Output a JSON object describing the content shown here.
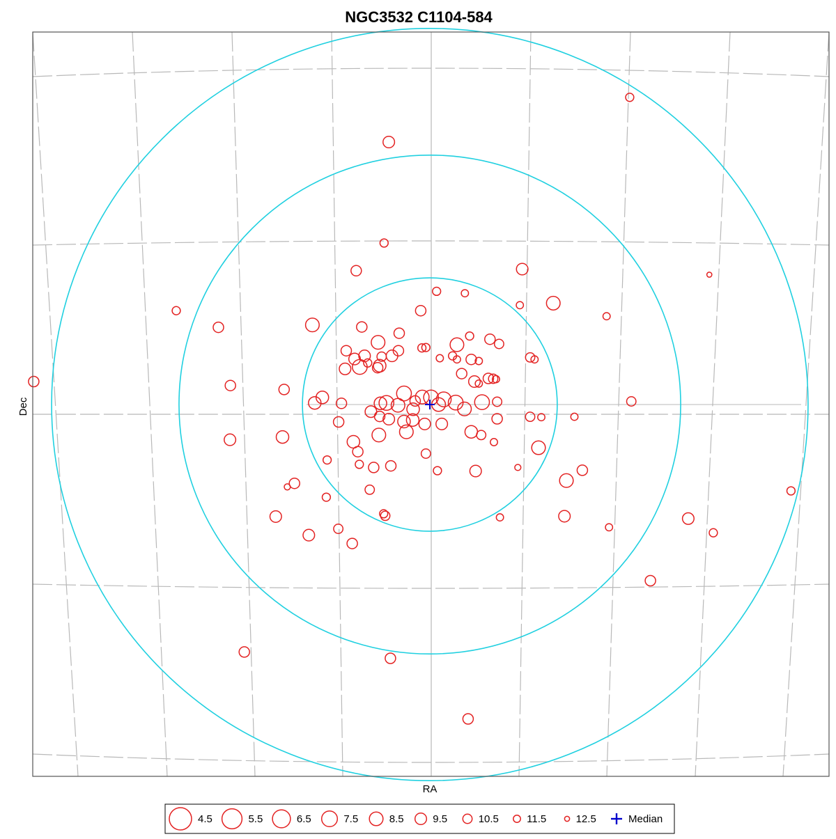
{
  "chart_data": {
    "type": "scatter",
    "title": "NGC3532  C1104-584",
    "xlabel": "RA",
    "ylabel": "Dec",
    "grid": true,
    "legend_position": "bottom",
    "center": [
      0,
      0
    ],
    "xlim": [
      -100,
      100
    ],
    "ylim": [
      -94,
      94
    ],
    "rings": [
      32,
      63,
      95
    ],
    "colors": {
      "star": "#e32222",
      "ring": "#20d0e0",
      "median": "#0000cc",
      "grid": "#b8b8b8",
      "frame": "#555555"
    },
    "legend": [
      {
        "mag": 4.5,
        "label": "4.5"
      },
      {
        "mag": 5.5,
        "label": "5.5"
      },
      {
        "mag": 6.5,
        "label": "6.5"
      },
      {
        "mag": 7.5,
        "label": "7.5"
      },
      {
        "mag": 8.5,
        "label": "8.5"
      },
      {
        "mag": 9.5,
        "label": "9.5"
      },
      {
        "mag": 10.5,
        "label": "10.5"
      },
      {
        "mag": 11.5,
        "label": "11.5"
      },
      {
        "mag": 12.5,
        "label": "12.5"
      }
    ],
    "median_label": "Median",
    "stars": [
      [
        50.2,
        77.6,
        11.0
      ],
      [
        -10.3,
        66.3,
        9.5
      ],
      [
        -11.5,
        40.8,
        11.0
      ],
      [
        -18.5,
        33.8,
        10.0
      ],
      [
        23.2,
        34.2,
        9.5
      ],
      [
        70.2,
        32.8,
        12.5
      ],
      [
        -63.7,
        23.7,
        11.0
      ],
      [
        -53.1,
        19.5,
        10.0
      ],
      [
        -29.5,
        20.1,
        8.5
      ],
      [
        1.7,
        28.6,
        11.0
      ],
      [
        8.8,
        28.1,
        11.5
      ],
      [
        -2.3,
        23.7,
        10.0
      ],
      [
        22.6,
        25.1,
        11.5
      ],
      [
        31.0,
        25.6,
        8.5
      ],
      [
        44.4,
        22.3,
        11.5
      ],
      [
        -17.1,
        19.6,
        10.0
      ],
      [
        -7.7,
        18.0,
        10.0
      ],
      [
        -13.0,
        15.7,
        8.5
      ],
      [
        -7.9,
        13.6,
        10.0
      ],
      [
        -2.0,
        14.3,
        11.0
      ],
      [
        -1.0,
        14.4,
        11.0
      ],
      [
        6.8,
        15.1,
        8.5
      ],
      [
        10.0,
        17.3,
        11.0
      ],
      [
        15.1,
        16.5,
        10.0
      ],
      [
        17.4,
        15.3,
        10.5
      ],
      [
        -21.0,
        13.6,
        10.0
      ],
      [
        -16.4,
        12.3,
        9.5
      ],
      [
        -9.5,
        12.3,
        9.5
      ],
      [
        -12.1,
        12.1,
        10.5
      ],
      [
        -18.9,
        11.5,
        9.5
      ],
      [
        -17.6,
        9.5,
        8.0
      ],
      [
        -12.6,
        9.8,
        9.0
      ],
      [
        2.5,
        11.7,
        11.5
      ],
      [
        5.7,
        12.3,
        11.0
      ],
      [
        6.8,
        11.4,
        11.5
      ],
      [
        10.4,
        11.4,
        10.0
      ],
      [
        12.3,
        11.0,
        11.5
      ],
      [
        -21.3,
        9.0,
        9.5
      ],
      [
        -15.6,
        10.5,
        11.0
      ],
      [
        -13.1,
        9.3,
        10.0
      ],
      [
        25.2,
        11.9,
        10.5
      ],
      [
        26.3,
        11.4,
        11.5
      ],
      [
        8.0,
        7.8,
        10.0
      ],
      [
        11.2,
        5.8,
        9.5
      ],
      [
        12.3,
        5.3,
        11.5
      ],
      [
        14.7,
        6.6,
        10.0
      ],
      [
        15.9,
        6.5,
        10.5
      ],
      [
        16.6,
        6.4,
        11.5
      ],
      [
        -50.1,
        4.8,
        10.0
      ],
      [
        -36.6,
        3.8,
        10.0
      ],
      [
        -27.0,
        1.8,
        9.0
      ],
      [
        -28.9,
        0.4,
        9.0
      ],
      [
        -22.2,
        0.3,
        10.0
      ],
      [
        -12.4,
        0.3,
        9.0
      ],
      [
        -10.9,
        0.4,
        8.0
      ],
      [
        -6.5,
        2.8,
        8.0
      ],
      [
        -1.9,
        1.9,
        8.5
      ],
      [
        0.3,
        1.8,
        8.0
      ],
      [
        2.2,
        0.0,
        8.5
      ],
      [
        -4.2,
        -1.2,
        9.0
      ],
      [
        -8.0,
        -0.2,
        8.5
      ],
      [
        -3.7,
        0.9,
        10.0
      ],
      [
        3.5,
        1.3,
        8.0
      ],
      [
        6.5,
        0.5,
        8.0
      ],
      [
        8.7,
        -1.1,
        8.5
      ],
      [
        -14.8,
        -1.8,
        9.5
      ],
      [
        13.1,
        0.6,
        8.0
      ],
      [
        16.9,
        0.7,
        10.5
      ],
      [
        25.2,
        -3.1,
        10.5
      ],
      [
        28.0,
        -3.2,
        11.5
      ],
      [
        36.3,
        -3.1,
        11.5
      ],
      [
        50.6,
        0.8,
        10.5
      ],
      [
        -22.9,
        -4.4,
        10.0
      ],
      [
        -12.6,
        -3.0,
        10.0
      ],
      [
        -10.3,
        -3.7,
        9.5
      ],
      [
        -6.5,
        -4.3,
        9.0
      ],
      [
        -4.3,
        -3.9,
        9.0
      ],
      [
        -1.3,
        -4.9,
        9.5
      ],
      [
        3.0,
        -4.9,
        9.5
      ],
      [
        16.9,
        -3.6,
        10.0
      ],
      [
        -5.9,
        -6.9,
        8.5
      ],
      [
        -12.8,
        -7.7,
        8.5
      ],
      [
        10.4,
        -6.9,
        9.0
      ],
      [
        12.9,
        -7.7,
        10.5
      ],
      [
        16.1,
        -9.5,
        11.5
      ],
      [
        -19.2,
        -9.4,
        9.0
      ],
      [
        -18.1,
        -11.9,
        10.0
      ],
      [
        -1.0,
        -12.4,
        10.5
      ],
      [
        27.3,
        -10.9,
        8.5
      ],
      [
        -37.0,
        -8.2,
        9.0
      ],
      [
        -50.2,
        -8.9,
        9.5
      ],
      [
        -25.8,
        -14.0,
        11.0
      ],
      [
        -17.7,
        -15.1,
        11.0
      ],
      [
        -14.1,
        -15.9,
        10.0
      ],
      [
        -9.8,
        -15.5,
        10.0
      ],
      [
        1.9,
        -16.7,
        11.0
      ],
      [
        11.5,
        -16.8,
        9.5
      ],
      [
        22.1,
        -15.9,
        12.0
      ],
      [
        38.3,
        -16.6,
        10.0
      ],
      [
        34.3,
        -19.2,
        8.5
      ],
      [
        -34.0,
        -19.9,
        10.0
      ],
      [
        -35.8,
        -20.8,
        12.0
      ],
      [
        -15.1,
        -21.5,
        10.5
      ],
      [
        -26.0,
        -23.4,
        11.0
      ],
      [
        -11.6,
        -27.6,
        11.0
      ],
      [
        -11.2,
        -28.1,
        10.5
      ],
      [
        17.6,
        -28.5,
        11.5
      ],
      [
        33.8,
        -28.2,
        9.5
      ],
      [
        -38.7,
        -28.3,
        9.5
      ],
      [
        64.9,
        -28.8,
        9.5
      ],
      [
        -23.0,
        -31.4,
        10.5
      ],
      [
        -30.4,
        -33.0,
        9.5
      ],
      [
        -19.5,
        -35.1,
        10.0
      ],
      [
        45.0,
        -31.0,
        11.5
      ],
      [
        71.2,
        -32.4,
        11.0
      ],
      [
        90.7,
        -21.8,
        11.0
      ],
      [
        -46.6,
        -62.5,
        10.0
      ],
      [
        -9.9,
        -64.1,
        10.0
      ],
      [
        55.4,
        -44.5,
        10.0
      ],
      [
        9.6,
        -79.4,
        10.0
      ],
      [
        -99.5,
        5.8,
        10.0
      ]
    ]
  }
}
